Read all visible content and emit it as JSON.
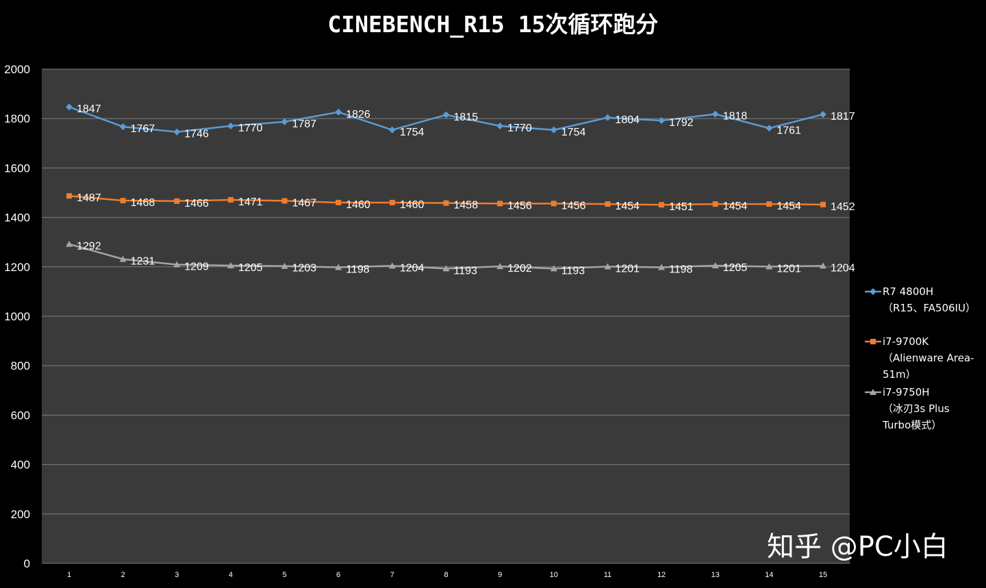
{
  "chart_data": {
    "type": "line",
    "title": "CINEBENCH_R15 15次循环跑分",
    "xlabel": "",
    "ylabel": "",
    "categories": [
      "1",
      "2",
      "3",
      "4",
      "5",
      "6",
      "7",
      "8",
      "9",
      "10",
      "11",
      "12",
      "13",
      "14",
      "15"
    ],
    "ylim": [
      0,
      2000
    ],
    "yticks": [
      0,
      200,
      400,
      600,
      800,
      1000,
      1200,
      1400,
      1600,
      1800,
      2000
    ],
    "grid": true,
    "legend_position": "right",
    "series": [
      {
        "name": "R7 4800H",
        "legend_lines": [
          "R7 4800H",
          "（R15、FA506IU）"
        ],
        "color": "#5B9BD5",
        "marker": "diamond",
        "values": [
          1847,
          1767,
          1746,
          1770,
          1787,
          1826,
          1754,
          1815,
          1770,
          1754,
          1804,
          1792,
          1818,
          1761,
          1817
        ]
      },
      {
        "name": "i7-9700K",
        "legend_lines": [
          "i7-9700K",
          "（Alienware Area-",
          "51m）"
        ],
        "color": "#ED7D31",
        "marker": "square",
        "values": [
          1487,
          1468,
          1466,
          1471,
          1467,
          1460,
          1460,
          1458,
          1456,
          1456,
          1454,
          1451,
          1454,
          1454,
          1452
        ]
      },
      {
        "name": "i7-9750H",
        "legend_lines": [
          "i7-9750H",
          "（冰刃3s Plus",
          "Turbo模式）"
        ],
        "color": "#A5A5A5",
        "marker": "triangle",
        "values": [
          1292,
          1231,
          1209,
          1205,
          1203,
          1198,
          1204,
          1193,
          1202,
          1193,
          1201,
          1198,
          1205,
          1201,
          1204
        ]
      }
    ]
  },
  "colors": {
    "background": "#000000",
    "plot_area": "#3A3A3A",
    "gridline": "#7F7F7F",
    "text": "#FFFFFF"
  },
  "watermark": "知乎 @PC小白"
}
